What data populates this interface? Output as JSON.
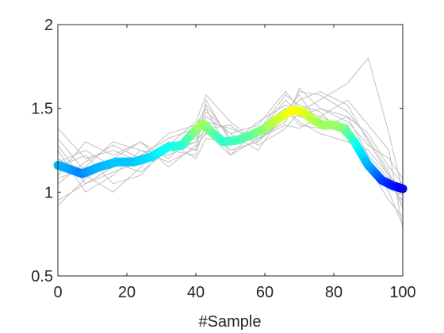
{
  "chart_data": {
    "type": "line",
    "title": "",
    "xlabel": "#Sample",
    "ylabel": "",
    "xlim": [
      0,
      100
    ],
    "ylim": [
      0.5,
      2
    ],
    "xticks": [
      0,
      20,
      40,
      60,
      80,
      100
    ],
    "yticks": [
      0.5,
      1,
      1.5,
      2
    ],
    "xtick_labels": [
      "0",
      "20",
      "40",
      "60",
      "80",
      "100"
    ],
    "ytick_labels": [
      "0.5",
      "1",
      "1.5",
      "2"
    ],
    "grid": false,
    "background_color": "#c0c0c0",
    "background_series": [
      {
        "x": [
          0,
          8,
          16,
          24,
          32,
          40,
          43,
          50,
          58,
          66,
          70,
          76,
          84,
          90,
          96,
          100
        ],
        "y": [
          1.38,
          1.2,
          1.25,
          1.18,
          1.3,
          1.25,
          1.55,
          1.3,
          1.35,
          1.55,
          1.45,
          1.42,
          1.4,
          1.2,
          1.05,
          0.95
        ]
      },
      {
        "x": [
          0,
          8,
          16,
          24,
          32,
          40,
          43,
          50,
          58,
          66,
          70,
          76,
          84,
          90,
          96,
          100
        ],
        "y": [
          0.95,
          1.05,
          1.15,
          1.2,
          1.25,
          1.3,
          1.45,
          1.35,
          1.4,
          1.6,
          1.5,
          1.45,
          1.38,
          1.15,
          0.95,
          0.85
        ]
      },
      {
        "x": [
          0,
          8,
          16,
          24,
          32,
          40,
          43,
          50,
          58,
          66,
          70,
          76,
          84,
          90,
          96,
          100
        ],
        "y": [
          1.1,
          1.3,
          1.22,
          1.3,
          1.2,
          1.35,
          1.4,
          1.25,
          1.3,
          1.45,
          1.55,
          1.6,
          1.52,
          1.3,
          1.1,
          1.0
        ]
      },
      {
        "x": [
          0,
          8,
          16,
          24,
          32,
          40,
          43,
          50,
          58,
          66,
          70,
          76,
          84,
          90,
          96,
          100
        ],
        "y": [
          1.2,
          1.1,
          1.0,
          1.15,
          1.3,
          1.2,
          1.32,
          1.3,
          1.38,
          1.5,
          1.42,
          1.35,
          1.3,
          1.25,
          1.1,
          0.9
        ]
      },
      {
        "x": [
          0,
          8,
          16,
          24,
          32,
          40,
          43,
          50,
          58,
          66,
          70,
          76,
          84,
          90,
          96,
          100
        ],
        "y": [
          1.05,
          1.18,
          1.28,
          1.2,
          1.35,
          1.4,
          1.5,
          1.22,
          1.32,
          1.42,
          1.62,
          1.5,
          1.45,
          1.35,
          1.15,
          1.05
        ]
      },
      {
        "x": [
          0,
          8,
          16,
          24,
          32,
          40,
          43,
          50,
          58,
          66,
          70,
          76,
          84,
          90,
          96,
          100
        ],
        "y": [
          1.25,
          1.0,
          1.1,
          1.25,
          1.22,
          1.3,
          1.38,
          1.4,
          1.28,
          1.38,
          1.48,
          1.55,
          1.65,
          1.8,
          1.35,
          1.0
        ]
      },
      {
        "x": [
          0,
          8,
          16,
          24,
          32,
          40,
          43,
          50,
          58,
          66,
          70,
          76,
          84,
          90,
          96,
          100
        ],
        "y": [
          1.15,
          1.22,
          1.05,
          1.1,
          1.28,
          1.32,
          1.48,
          1.35,
          1.25,
          1.48,
          1.58,
          1.4,
          1.35,
          1.2,
          1.0,
          0.8
        ]
      },
      {
        "x": [
          0,
          8,
          16,
          24,
          32,
          40,
          43,
          50,
          58,
          66,
          70,
          76,
          84,
          90,
          96,
          100
        ],
        "y": [
          1.32,
          1.12,
          1.2,
          1.3,
          1.15,
          1.28,
          1.35,
          1.28,
          1.42,
          1.52,
          1.45,
          1.5,
          1.42,
          1.28,
          1.2,
          1.08
        ]
      },
      {
        "x": [
          0,
          8,
          16,
          24,
          32,
          40,
          43,
          50,
          58,
          66,
          70,
          76,
          84,
          90,
          96,
          100
        ],
        "y": [
          0.92,
          1.08,
          1.18,
          1.12,
          1.25,
          1.22,
          1.42,
          1.38,
          1.32,
          1.4,
          1.38,
          1.45,
          1.55,
          1.4,
          1.25,
          0.78
        ]
      },
      {
        "x": [
          0,
          8,
          16,
          24,
          32,
          40,
          43,
          50,
          58,
          66,
          70,
          76,
          84,
          90,
          96,
          100
        ],
        "y": [
          1.18,
          1.25,
          1.15,
          1.22,
          1.32,
          1.38,
          1.52,
          1.32,
          1.36,
          1.58,
          1.52,
          1.48,
          1.32,
          1.18,
          1.02,
          0.98
        ]
      },
      {
        "x": [
          0,
          8,
          16,
          24,
          32,
          40,
          43,
          50,
          58,
          66,
          70,
          76,
          84,
          90,
          96,
          100
        ],
        "y": [
          1.08,
          1.15,
          1.3,
          1.25,
          1.18,
          1.26,
          1.36,
          1.22,
          1.38,
          1.46,
          1.6,
          1.58,
          1.48,
          1.32,
          1.12,
          0.92
        ]
      },
      {
        "x": [
          0,
          8,
          16,
          24,
          32,
          40,
          43,
          50,
          58,
          66,
          70,
          76,
          84,
          90,
          96,
          100
        ],
        "y": [
          1.28,
          1.05,
          1.12,
          1.18,
          1.28,
          1.42,
          1.58,
          1.42,
          1.3,
          1.5,
          1.4,
          1.38,
          1.45,
          1.22,
          1.08,
          1.02
        ]
      }
    ],
    "highlight_series": {
      "x": [
        0,
        3,
        7,
        12,
        17,
        22,
        27,
        32,
        36,
        39,
        42,
        45,
        48,
        52,
        56,
        60,
        64,
        68,
        71,
        74,
        77,
        80,
        83,
        86,
        90,
        94,
        97,
        100
      ],
      "y": [
        1.16,
        1.14,
        1.11,
        1.15,
        1.18,
        1.18,
        1.21,
        1.27,
        1.28,
        1.35,
        1.41,
        1.35,
        1.3,
        1.31,
        1.34,
        1.38,
        1.44,
        1.49,
        1.48,
        1.43,
        1.4,
        1.4,
        1.38,
        1.3,
        1.16,
        1.07,
        1.04,
        1.02
      ],
      "colormap": "jet",
      "color_stops": [
        "#0000ff",
        "#00a8ff",
        "#00ffff",
        "#80ff80",
        "#ffff00"
      ],
      "color_range": [
        1.02,
        1.49
      ]
    }
  }
}
